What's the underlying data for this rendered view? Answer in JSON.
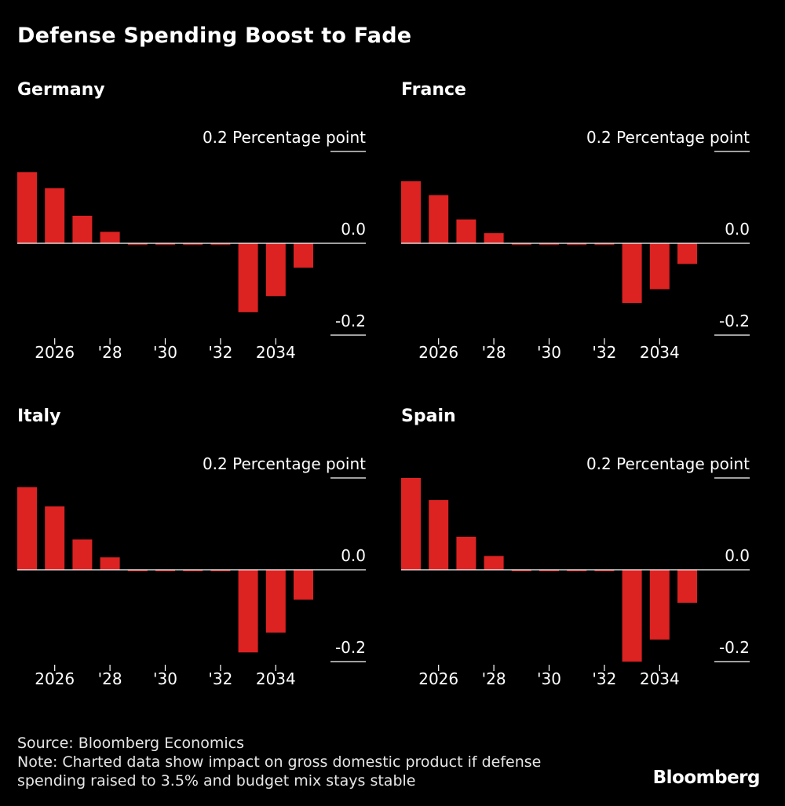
{
  "title": "Defense Spending Boost to Fade",
  "colors": {
    "bar": "#dd2222",
    "background": "#000000",
    "text": "#ffffff",
    "axis": "#ffffff"
  },
  "chart_data": [
    {
      "type": "bar",
      "title": "Germany",
      "unit_label": "0.2 Percentage point",
      "ylim": [
        -0.2,
        0.2
      ],
      "yticks": [
        0.2,
        0.0,
        -0.2
      ],
      "ytick_labels": [
        "0.2 Percentage point",
        "0.0",
        "-0.2"
      ],
      "categories": [
        2025,
        2026,
        2027,
        2028,
        2029,
        2030,
        2031,
        2032,
        2033,
        2034,
        2035
      ],
      "xtick_labels": [
        {
          "x": 2026,
          "label": "2026"
        },
        {
          "x": 2028,
          "label": "'28"
        },
        {
          "x": 2030,
          "label": "'30"
        },
        {
          "x": 2032,
          "label": "'32"
        },
        {
          "x": 2034,
          "label": "2034"
        }
      ],
      "values": [
        0.155,
        0.12,
        0.06,
        0.025,
        -0.003,
        -0.003,
        -0.003,
        -0.003,
        -0.15,
        -0.115,
        -0.053
      ]
    },
    {
      "type": "bar",
      "title": "France",
      "unit_label": "0.2 Percentage point",
      "ylim": [
        -0.2,
        0.2
      ],
      "yticks": [
        0.2,
        0.0,
        -0.2
      ],
      "ytick_labels": [
        "0.2 Percentage point",
        "0.0",
        "-0.2"
      ],
      "categories": [
        2025,
        2026,
        2027,
        2028,
        2029,
        2030,
        2031,
        2032,
        2033,
        2034,
        2035
      ],
      "xtick_labels": [
        {
          "x": 2026,
          "label": "2026"
        },
        {
          "x": 2028,
          "label": "'28"
        },
        {
          "x": 2030,
          "label": "'30"
        },
        {
          "x": 2032,
          "label": "'32"
        },
        {
          "x": 2034,
          "label": "2034"
        }
      ],
      "values": [
        0.135,
        0.105,
        0.052,
        0.022,
        -0.003,
        -0.003,
        -0.003,
        -0.003,
        -0.13,
        -0.1,
        -0.045
      ]
    },
    {
      "type": "bar",
      "title": "Italy",
      "unit_label": "0.2 Percentage point",
      "ylim": [
        -0.2,
        0.2
      ],
      "yticks": [
        0.2,
        0.0,
        -0.2
      ],
      "ytick_labels": [
        "0.2 Percentage point",
        "0.0",
        "-0.2"
      ],
      "categories": [
        2025,
        2026,
        2027,
        2028,
        2029,
        2030,
        2031,
        2032,
        2033,
        2034,
        2035
      ],
      "xtick_labels": [
        {
          "x": 2026,
          "label": "2026"
        },
        {
          "x": 2028,
          "label": "'28"
        },
        {
          "x": 2030,
          "label": "'30"
        },
        {
          "x": 2032,
          "label": "'32"
        },
        {
          "x": 2034,
          "label": "2034"
        }
      ],
      "values": [
        0.18,
        0.138,
        0.066,
        0.027,
        -0.003,
        -0.003,
        -0.003,
        -0.003,
        -0.18,
        -0.137,
        -0.065
      ]
    },
    {
      "type": "bar",
      "title": "Spain",
      "unit_label": "0.2 Percentage point",
      "ylim": [
        -0.2,
        0.2
      ],
      "yticks": [
        0.2,
        0.0,
        -0.2
      ],
      "ytick_labels": [
        "0.2 Percentage point",
        "0.0",
        "-0.2"
      ],
      "categories": [
        2025,
        2026,
        2027,
        2028,
        2029,
        2030,
        2031,
        2032,
        2033,
        2034,
        2035
      ],
      "xtick_labels": [
        {
          "x": 2026,
          "label": "2026"
        },
        {
          "x": 2028,
          "label": "'28"
        },
        {
          "x": 2030,
          "label": "'30"
        },
        {
          "x": 2032,
          "label": "'32"
        },
        {
          "x": 2034,
          "label": "2034"
        }
      ],
      "values": [
        0.2,
        0.152,
        0.072,
        0.03,
        -0.003,
        -0.003,
        -0.003,
        -0.003,
        -0.2,
        -0.152,
        -0.072
      ]
    }
  ],
  "footer": {
    "source": "Source: Bloomberg Economics",
    "note_line1": "Note: Charted data show impact on gross domestic product if defense",
    "note_line2": "spending raised to 3.5% and budget mix stays stable"
  },
  "brand": "Bloomberg"
}
